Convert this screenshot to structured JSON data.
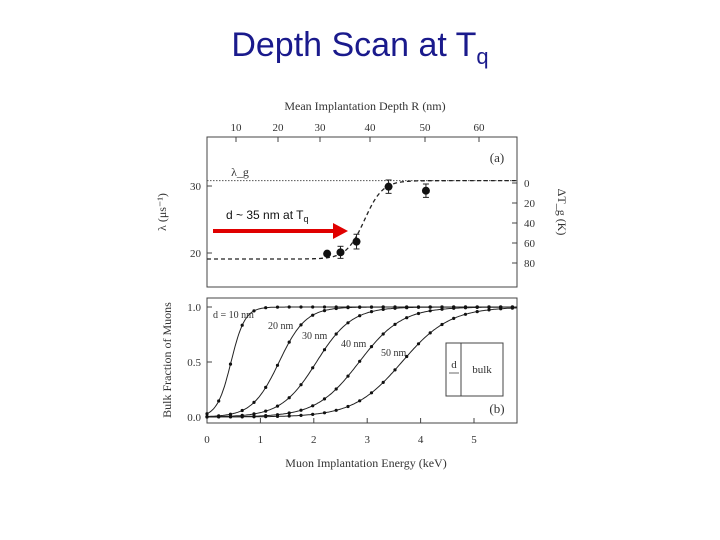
{
  "slide": {
    "title_main": "Depth Scan at T",
    "title_sub": "q"
  },
  "annotation": {
    "text_main": "d ~ 35 nm at T",
    "text_sub": "q",
    "arrow_color": "#e00000"
  },
  "colors": {
    "axis": "#444444",
    "title": "#1a1a8c",
    "marker": "#111111"
  },
  "chart_data": [
    {
      "id": "a",
      "type": "scatter",
      "panel_label": "(a)",
      "top_axis_label": "Mean Implantation Depth R (nm)",
      "top_ticks": [
        10,
        20,
        30,
        40,
        50,
        60
      ],
      "ylabel_left": "λ (μs⁻¹)",
      "ylabel_right": "ΔT_g (K)",
      "ylim": [
        17.5,
        32
      ],
      "yticks_left": [
        20,
        30
      ],
      "yticks_right": [
        0,
        20,
        40,
        60,
        80
      ],
      "lambda_label": "λ_g",
      "lambda_level": 30.8,
      "points": [
        {
          "x": 2.25,
          "y": 19.9,
          "err": 0.0
        },
        {
          "x": 2.5,
          "y": 20.1,
          "err": 0.9
        },
        {
          "x": 2.8,
          "y": 21.7,
          "err": 1.1
        },
        {
          "x": 3.4,
          "y": 29.9,
          "err": 1.0
        },
        {
          "x": 4.1,
          "y": 29.3,
          "err": 1.0
        }
      ],
      "fit": {
        "low": 19.1,
        "high": 30.8,
        "center": 2.95,
        "width": 0.17,
        "from": 0,
        "to": 5.8
      }
    },
    {
      "id": "b",
      "type": "line",
      "panel_label": "(b)",
      "xlabel": "Muon Implantation Energy (keV)",
      "ylabel": "Bulk Fraction of Muons",
      "xlim": [
        0,
        5.8
      ],
      "ylim": [
        0,
        1.05
      ],
      "xticks": [
        0,
        1,
        2,
        3,
        4,
        5
      ],
      "yticks": [
        0.0,
        0.5,
        1.0
      ],
      "series": [
        {
          "name": "d = 10 nm",
          "center": 0.45,
          "width": 0.13
        },
        {
          "name": "20 nm",
          "center": 1.35,
          "width": 0.25
        },
        {
          "name": "30 nm",
          "center": 2.05,
          "width": 0.33
        },
        {
          "name": "40 nm",
          "center": 2.85,
          "width": 0.4
        },
        {
          "name": "50 nm",
          "center": 3.65,
          "width": 0.45
        }
      ],
      "inset": {
        "left_label": "d",
        "right_label": "bulk"
      }
    }
  ]
}
